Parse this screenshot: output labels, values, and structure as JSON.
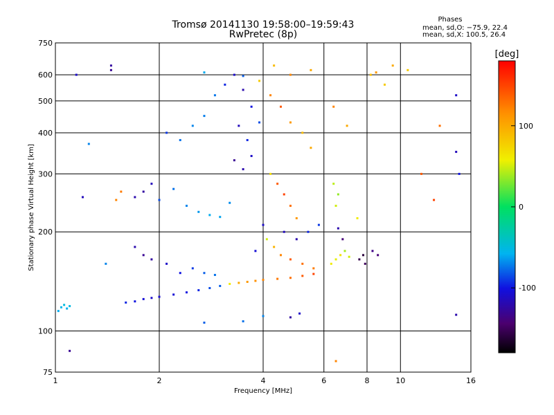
{
  "chart_data": {
    "type": "scatter",
    "title": "Tromsø 20141130 19:58:00–19:59:43",
    "subtitle": "RwPretec (8p)",
    "xlabel": "Frequency [MHz]",
    "ylabel": "Stationary phase Virtual Height [km]",
    "x_scale": "log",
    "y_scale": "log",
    "xlim": [
      1,
      16
    ],
    "ylim": [
      75,
      750
    ],
    "x_ticks": [
      1,
      2,
      4,
      6,
      8,
      10,
      16
    ],
    "y_ticks": [
      75,
      100,
      200,
      300,
      400,
      500,
      600,
      750
    ],
    "grid": true,
    "legend": {
      "title": "Phases",
      "lines": [
        "mean, sd,O: −75.9, 22.4",
        "mean, sd,X: 100.5, 26.4"
      ],
      "placement": "top-right"
    },
    "colorbar": {
      "label": "[deg]",
      "ticks": [
        100,
        0,
        -100
      ],
      "range": [
        -180,
        180
      ],
      "colormap": "rainbow"
    },
    "series": [
      {
        "points": [
          [
            1.02,
            115,
            -60
          ],
          [
            1.04,
            118,
            -55
          ],
          [
            1.06,
            120,
            -50
          ],
          [
            1.08,
            117,
            -58
          ],
          [
            1.1,
            119,
            -52
          ],
          [
            1.15,
            600,
            -110
          ],
          [
            1.45,
            620,
            -130
          ],
          [
            1.45,
            640,
            -125
          ],
          [
            1.25,
            370,
            -70
          ],
          [
            1.2,
            255,
            -115
          ],
          [
            1.4,
            160,
            -70
          ],
          [
            1.5,
            250,
            120
          ],
          [
            1.55,
            265,
            125
          ],
          [
            1.6,
            122,
            -95
          ],
          [
            1.7,
            123,
            -100
          ],
          [
            1.8,
            125,
            -105
          ],
          [
            1.9,
            126,
            -110
          ],
          [
            2.0,
            127,
            -108
          ],
          [
            2.2,
            129,
            -105
          ],
          [
            2.4,
            131,
            -100
          ],
          [
            2.6,
            133,
            -95
          ],
          [
            2.8,
            135,
            -85
          ],
          [
            3.0,
            137,
            -80
          ],
          [
            3.2,
            139,
            60
          ],
          [
            3.4,
            140,
            100
          ],
          [
            3.6,
            141,
            110
          ],
          [
            3.8,
            142,
            115
          ],
          [
            4.0,
            143,
            120
          ],
          [
            4.4,
            144,
            125
          ],
          [
            4.8,
            145,
            130
          ],
          [
            5.2,
            147,
            140
          ],
          [
            5.6,
            149,
            150
          ],
          [
            1.7,
            180,
            -120
          ],
          [
            1.8,
            170,
            -130
          ],
          [
            1.9,
            165,
            -125
          ],
          [
            2.1,
            160,
            -110
          ],
          [
            2.3,
            150,
            -100
          ],
          [
            2.5,
            155,
            -90
          ],
          [
            2.7,
            150,
            -80
          ],
          [
            2.9,
            148,
            -75
          ],
          [
            1.7,
            255,
            -120
          ],
          [
            1.8,
            265,
            -125
          ],
          [
            1.9,
            280,
            -115
          ],
          [
            2.0,
            250,
            -85
          ],
          [
            2.2,
            270,
            -75
          ],
          [
            2.4,
            240,
            -70
          ],
          [
            2.6,
            230,
            -65
          ],
          [
            2.8,
            225,
            -60
          ],
          [
            3.0,
            222,
            -62
          ],
          [
            3.2,
            245,
            -68
          ],
          [
            2.1,
            400,
            -90
          ],
          [
            2.3,
            380,
            -75
          ],
          [
            2.5,
            420,
            -70
          ],
          [
            2.7,
            450,
            -72
          ],
          [
            2.9,
            520,
            -74
          ],
          [
            3.1,
            560,
            -95
          ],
          [
            3.3,
            600,
            -110
          ],
          [
            3.5,
            540,
            -120
          ],
          [
            3.7,
            480,
            -100
          ],
          [
            3.9,
            430,
            -85
          ],
          [
            3.3,
            330,
            -130
          ],
          [
            3.5,
            310,
            -120
          ],
          [
            3.7,
            340,
            -110
          ],
          [
            3.4,
            420,
            -115
          ],
          [
            3.6,
            380,
            -95
          ],
          [
            4.2,
            300,
            70
          ],
          [
            4.4,
            280,
            140
          ],
          [
            4.6,
            260,
            150
          ],
          [
            4.8,
            240,
            130
          ],
          [
            5.0,
            220,
            110
          ],
          [
            4.2,
            520,
            120
          ],
          [
            4.5,
            480,
            140
          ],
          [
            4.8,
            430,
            110
          ],
          [
            5.2,
            400,
            90
          ],
          [
            5.5,
            360,
            100
          ],
          [
            4.3,
            640,
            90
          ],
          [
            4.8,
            600,
            120
          ],
          [
            5.5,
            620,
            100
          ],
          [
            4.1,
            190,
            50
          ],
          [
            4.3,
            180,
            95
          ],
          [
            4.5,
            170,
            120
          ],
          [
            4.8,
            165,
            140
          ],
          [
            5.2,
            160,
            130
          ],
          [
            5.6,
            155,
            125
          ],
          [
            3.8,
            175,
            -105
          ],
          [
            4.0,
            210,
            -110
          ],
          [
            4.6,
            200,
            -115
          ],
          [
            5.0,
            190,
            -120
          ],
          [
            5.4,
            200,
            -95
          ],
          [
            5.8,
            210,
            -90
          ],
          [
            6.3,
            160,
            60
          ],
          [
            6.5,
            165,
            55
          ],
          [
            6.7,
            170,
            65
          ],
          [
            6.9,
            175,
            40
          ],
          [
            7.1,
            168,
            50
          ],
          [
            6.4,
            280,
            45
          ],
          [
            6.6,
            260,
            35
          ],
          [
            6.5,
            240,
            50
          ],
          [
            6.6,
            205,
            -120
          ],
          [
            6.8,
            190,
            -140
          ],
          [
            7.6,
            165,
            -155
          ],
          [
            7.8,
            170,
            -160
          ],
          [
            7.9,
            160,
            -150
          ],
          [
            8.3,
            175,
            -135
          ],
          [
            8.6,
            170,
            -140
          ],
          [
            6.4,
            480,
            120
          ],
          [
            7.0,
            420,
            100
          ],
          [
            7.5,
            220,
            60
          ],
          [
            8.2,
            600,
            90
          ],
          [
            8.5,
            610,
            110
          ],
          [
            9.0,
            560,
            80
          ],
          [
            9.5,
            640,
            100
          ],
          [
            10.5,
            620,
            80
          ],
          [
            11.5,
            300,
            140
          ],
          [
            12.5,
            250,
            150
          ],
          [
            13.0,
            420,
            130
          ],
          [
            14.5,
            520,
            -110
          ],
          [
            14.5,
            350,
            -115
          ],
          [
            14.8,
            300,
            -100
          ],
          [
            14.5,
            112,
            -120
          ],
          [
            2.7,
            106,
            -80
          ],
          [
            3.5,
            107,
            -75
          ],
          [
            4.0,
            111,
            -70
          ],
          [
            4.8,
            110,
            -125
          ],
          [
            5.1,
            113,
            -110
          ],
          [
            6.5,
            81,
            120
          ],
          [
            1.1,
            87,
            -130
          ],
          [
            3.5,
            595,
            -80
          ],
          [
            2.7,
            610,
            -60
          ],
          [
            3.9,
            575,
            80
          ]
        ]
      }
    ]
  }
}
